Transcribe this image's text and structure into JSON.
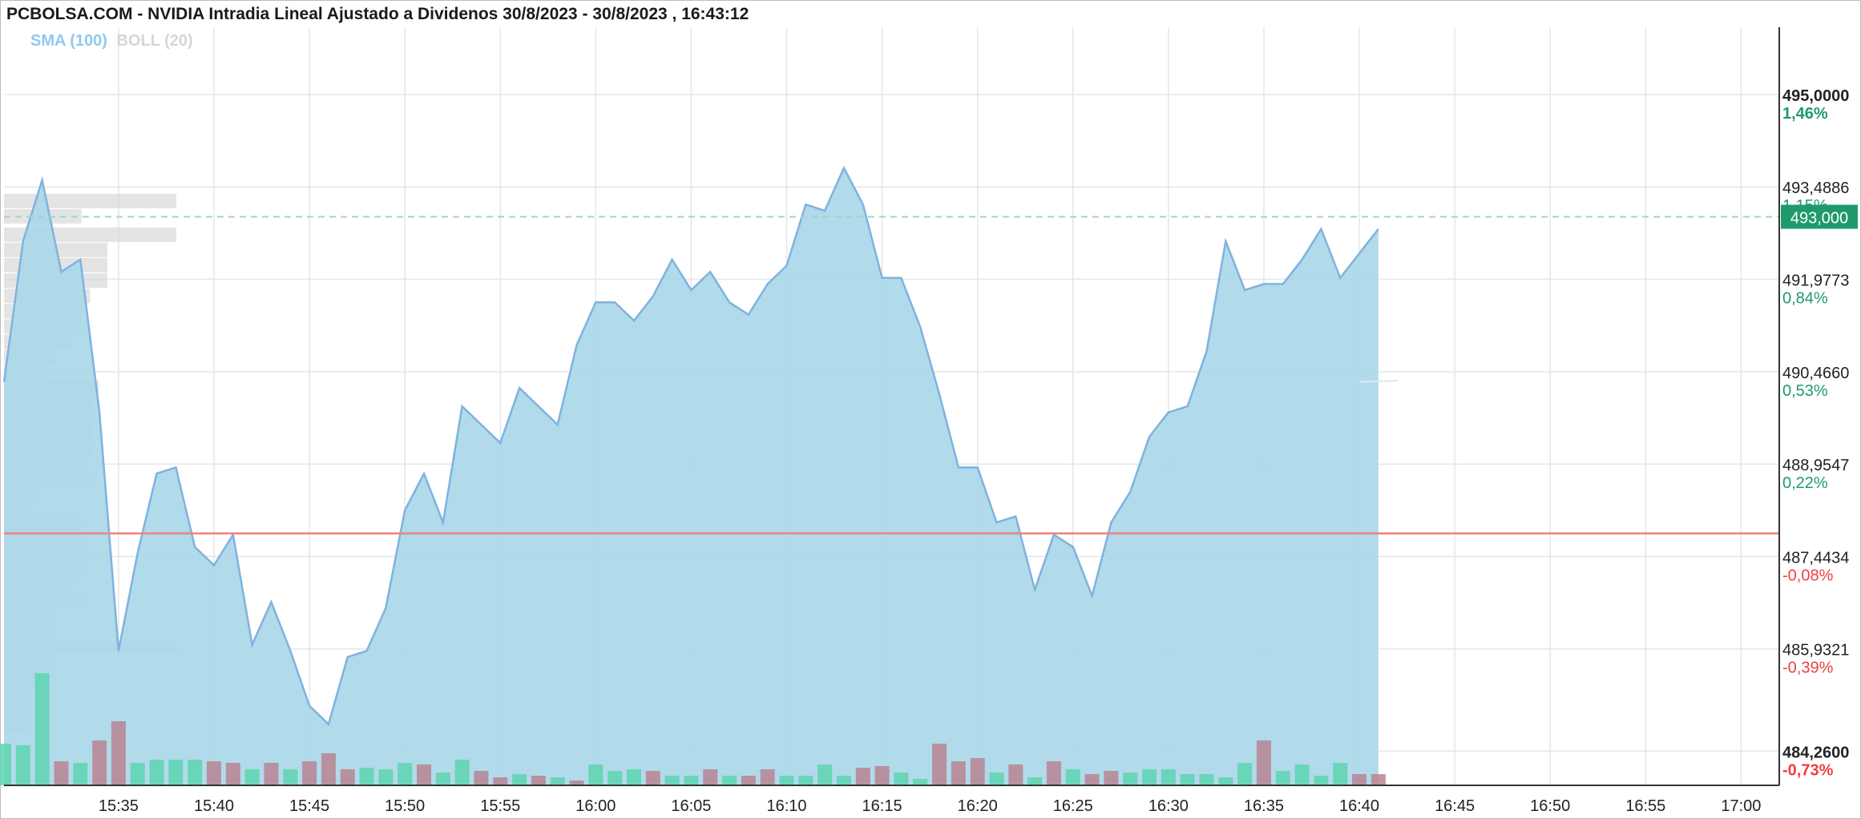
{
  "title": "PCBOLSA.COM - NVIDIA Intradia Lineal Ajustado a Dividenos 30/8/2023 - 30/8/2023 , 16:43:12",
  "indicators": {
    "sma": "SMA (100)",
    "boll": "BOLL (20)"
  },
  "colors": {
    "area_fill": "#a9d6e8",
    "area_line": "#7fb2e0",
    "reference_line": "#f08080",
    "current_price_bg": "#1f9a6d",
    "volume_up": "#5fd3b0",
    "volume_down": "#b98492",
    "pct_positive": "#1f9a6d",
    "pct_negative": "#f04040"
  },
  "current_price_label": "493,000",
  "chart_data": {
    "type": "area",
    "title": "PCBOLSA.COM - NVIDIA Intradia Lineal Ajustado a Dividenos 30/8/2023 - 30/8/2023 , 16:43:12",
    "x_start": "15:29",
    "x_interval_minutes": 1,
    "x_ticks": [
      "15:35",
      "15:40",
      "15:45",
      "15:50",
      "15:55",
      "16:00",
      "16:05",
      "16:10",
      "16:15",
      "16:20",
      "16:25",
      "16:30",
      "16:35",
      "16:40",
      "16:45",
      "16:50",
      "16:55",
      "17:00"
    ],
    "xlim": [
      "15:29",
      "17:02"
    ],
    "ylim": [
      483.7,
      496.1
    ],
    "y_ticks": [
      {
        "value": 495.0,
        "label": "495,0000",
        "pct": "1,46%",
        "bold": true
      },
      {
        "value": 493.4886,
        "label": "493,4886",
        "pct": "1,15%",
        "bold": false
      },
      {
        "value": 491.9773,
        "label": "491,9773",
        "pct": "0,84%",
        "bold": false
      },
      {
        "value": 490.466,
        "label": "490,4660",
        "pct": "0,53%",
        "bold": false
      },
      {
        "value": 488.9547,
        "label": "488,9547",
        "pct": "0,22%",
        "bold": false
      },
      {
        "value": 487.4434,
        "label": "487,4434",
        "pct": "-0,08%",
        "bold": false
      },
      {
        "value": 485.9321,
        "label": "485,9321",
        "pct": "-0,39%",
        "bold": false
      },
      {
        "value": 484.26,
        "label": "484,2600",
        "pct": "-0,73%",
        "bold": true
      }
    ],
    "reference_price": 487.82,
    "current_price": 493.0,
    "price": [
      490.3,
      492.6,
      493.6,
      492.1,
      492.3,
      489.8,
      485.9,
      487.5,
      488.8,
      488.9,
      487.6,
      487.3,
      487.8,
      486.0,
      486.7,
      485.9,
      485.0,
      484.7,
      485.8,
      485.9,
      486.6,
      488.2,
      488.8,
      488.0,
      489.9,
      489.6,
      489.3,
      490.2,
      489.9,
      489.6,
      490.9,
      491.6,
      491.6,
      491.3,
      491.7,
      492.3,
      491.8,
      492.1,
      491.6,
      491.4,
      491.9,
      492.2,
      493.2,
      493.1,
      493.8,
      493.2,
      492.0,
      492.0,
      491.2,
      490.1,
      488.9,
      488.9,
      488.0,
      488.1,
      486.9,
      487.8,
      487.6,
      486.8,
      488.0,
      488.5,
      489.4,
      489.8,
      489.9,
      490.8,
      492.6,
      491.8,
      491.9,
      491.9,
      492.3,
      492.8,
      492.0,
      492.4,
      492.8
    ],
    "volume": [
      {
        "v": 26,
        "up": true
      },
      {
        "v": 25,
        "up": true
      },
      {
        "v": 70,
        "up": true
      },
      {
        "v": 15,
        "up": false
      },
      {
        "v": 14,
        "up": true
      },
      {
        "v": 28,
        "up": false
      },
      {
        "v": 40,
        "up": false
      },
      {
        "v": 14,
        "up": true
      },
      {
        "v": 16,
        "up": true
      },
      {
        "v": 16,
        "up": true
      },
      {
        "v": 16,
        "up": true
      },
      {
        "v": 15,
        "up": false
      },
      {
        "v": 14,
        "up": false
      },
      {
        "v": 10,
        "up": true
      },
      {
        "v": 14,
        "up": false
      },
      {
        "v": 10,
        "up": true
      },
      {
        "v": 15,
        "up": false
      },
      {
        "v": 20,
        "up": false
      },
      {
        "v": 10,
        "up": false
      },
      {
        "v": 11,
        "up": true
      },
      {
        "v": 10,
        "up": true
      },
      {
        "v": 14,
        "up": true
      },
      {
        "v": 13,
        "up": false
      },
      {
        "v": 8,
        "up": true
      },
      {
        "v": 16,
        "up": true
      },
      {
        "v": 9,
        "up": false
      },
      {
        "v": 5,
        "up": false
      },
      {
        "v": 7,
        "up": true
      },
      {
        "v": 6,
        "up": false
      },
      {
        "v": 5,
        "up": true
      },
      {
        "v": 3,
        "up": false
      },
      {
        "v": 13,
        "up": true
      },
      {
        "v": 9,
        "up": true
      },
      {
        "v": 10,
        "up": true
      },
      {
        "v": 9,
        "up": false
      },
      {
        "v": 6,
        "up": true
      },
      {
        "v": 6,
        "up": true
      },
      {
        "v": 10,
        "up": false
      },
      {
        "v": 6,
        "up": true
      },
      {
        "v": 6,
        "up": false
      },
      {
        "v": 10,
        "up": false
      },
      {
        "v": 6,
        "up": true
      },
      {
        "v": 6,
        "up": true
      },
      {
        "v": 13,
        "up": true
      },
      {
        "v": 6,
        "up": true
      },
      {
        "v": 11,
        "up": false
      },
      {
        "v": 12,
        "up": false
      },
      {
        "v": 8,
        "up": true
      },
      {
        "v": 4,
        "up": true
      },
      {
        "v": 26,
        "up": false
      },
      {
        "v": 15,
        "up": false
      },
      {
        "v": 17,
        "up": false
      },
      {
        "v": 8,
        "up": true
      },
      {
        "v": 13,
        "up": false
      },
      {
        "v": 5,
        "up": true
      },
      {
        "v": 15,
        "up": false
      },
      {
        "v": 10,
        "up": true
      },
      {
        "v": 7,
        "up": false
      },
      {
        "v": 9,
        "up": false
      },
      {
        "v": 8,
        "up": true
      },
      {
        "v": 10,
        "up": true
      },
      {
        "v": 10,
        "up": true
      },
      {
        "v": 7,
        "up": true
      },
      {
        "v": 7,
        "up": true
      },
      {
        "v": 5,
        "up": true
      },
      {
        "v": 14,
        "up": true
      },
      {
        "v": 28,
        "up": false
      },
      {
        "v": 9,
        "up": true
      },
      {
        "v": 13,
        "up": true
      },
      {
        "v": 6,
        "up": true
      },
      {
        "v": 14,
        "up": true
      },
      {
        "v": 7,
        "up": false
      },
      {
        "v": 7,
        "up": false
      }
    ],
    "volume_profile": [
      {
        "price": 493.25,
        "v": 1.0
      },
      {
        "price": 493.0,
        "v": 0.45
      },
      {
        "price": 492.7,
        "v": 1.0
      },
      {
        "price": 492.45,
        "v": 0.6
      },
      {
        "price": 492.2,
        "v": 0.6
      },
      {
        "price": 491.95,
        "v": 0.6
      },
      {
        "price": 491.7,
        "v": 0.5
      },
      {
        "price": 491.45,
        "v": 0.45
      },
      {
        "price": 491.2,
        "v": 0.45
      },
      {
        "price": 490.95,
        "v": 0.4
      },
      {
        "price": 490.7,
        "v": 0.3
      },
      {
        "price": 490.45,
        "v": 0.22
      },
      {
        "price": 490.2,
        "v": 0.55
      },
      {
        "price": 489.95,
        "v": 0.5
      },
      {
        "price": 489.7,
        "v": 0.52
      },
      {
        "price": 489.45,
        "v": 0.5
      },
      {
        "price": 489.2,
        "v": 0.5
      },
      {
        "price": 488.95,
        "v": 0.45
      },
      {
        "price": 488.7,
        "v": 0.52
      },
      {
        "price": 488.45,
        "v": 0.2
      },
      {
        "price": 488.2,
        "v": 0.15
      },
      {
        "price": 487.95,
        "v": 0.45
      },
      {
        "price": 487.7,
        "v": 0.45
      },
      {
        "price": 487.45,
        "v": 0.45
      },
      {
        "price": 487.2,
        "v": 0.45
      },
      {
        "price": 486.95,
        "v": 0.4
      },
      {
        "price": 486.7,
        "v": 0.45
      },
      {
        "price": 486.45,
        "v": 0.3
      },
      {
        "price": 486.2,
        "v": 0.3
      },
      {
        "price": 485.95,
        "v": 1.0
      },
      {
        "price": 485.7,
        "v": 0.3
      },
      {
        "price": 485.45,
        "v": 0.2
      },
      {
        "price": 485.2,
        "v": 0.15
      },
      {
        "price": 484.95,
        "v": 0.15
      },
      {
        "price": 484.7,
        "v": 0.15
      }
    ]
  }
}
